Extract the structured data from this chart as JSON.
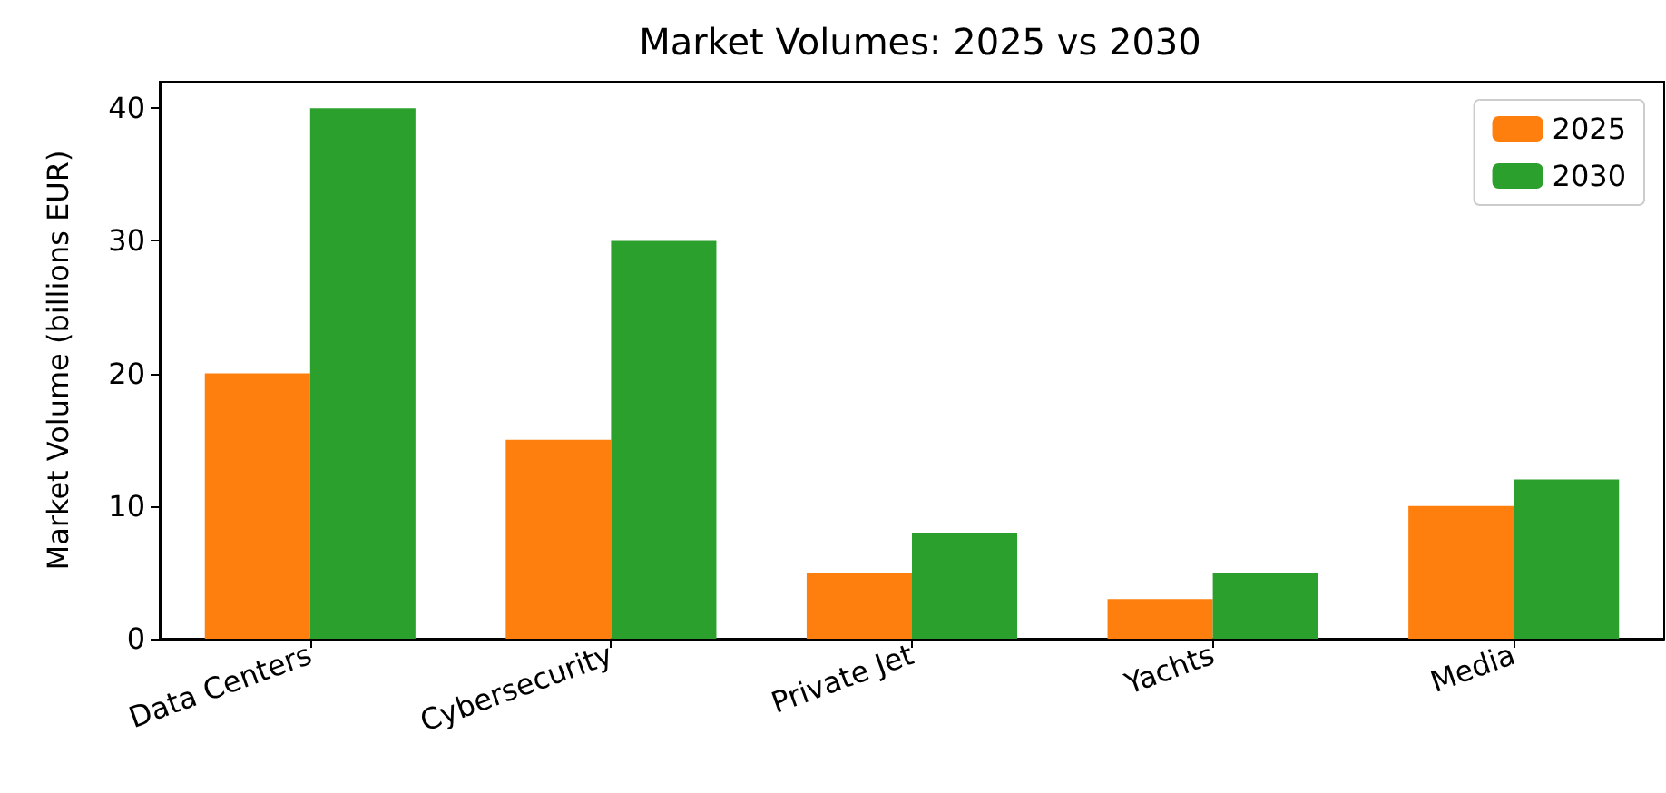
{
  "chart_data": {
    "type": "bar",
    "title": "Market Volumes: 2025 vs 2030",
    "ylabel": "Market Volume (billions EUR)",
    "categories": [
      "Data Centers",
      "Cybersecurity",
      "Private Jet",
      "Yachts",
      "Media"
    ],
    "series": [
      {
        "name": "2025",
        "color": "#ff7f0e",
        "values": [
          20,
          15,
          5,
          3,
          10
        ]
      },
      {
        "name": "2030",
        "color": "#2ca02c",
        "values": [
          40,
          30,
          8,
          5,
          12
        ]
      }
    ],
    "ylim": [
      0,
      42
    ],
    "yticks": [
      0,
      10,
      20,
      30,
      40
    ],
    "grid": false,
    "legend": "top right"
  }
}
